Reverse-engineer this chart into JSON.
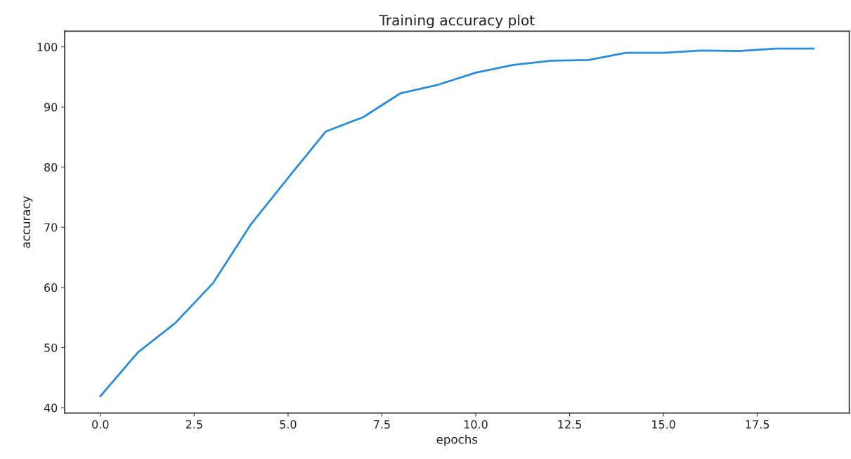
{
  "chart_data": {
    "type": "line",
    "title": "Training accuracy plot",
    "xlabel": "epochs",
    "ylabel": "accuracy",
    "x": [
      0,
      1,
      2,
      3,
      4,
      5,
      6,
      7,
      8,
      9,
      10,
      11,
      12,
      13,
      14,
      15,
      16,
      17,
      18,
      19
    ],
    "series": [
      {
        "color": "#2a8bd8",
        "values": [
          41.9,
          49.2,
          54.1,
          60.7,
          70.4,
          78.2,
          85.9,
          88.3,
          92.3,
          93.7,
          95.7,
          97.0,
          97.7,
          97.8,
          99.0,
          99.0,
          99.4,
          99.3,
          99.7,
          99.7
        ]
      }
    ],
    "xlim": [
      -0.95,
      19.95
    ],
    "ylim": [
      39.1,
      102.6
    ],
    "xticks": [
      {
        "value": 0,
        "label": "0.0"
      },
      {
        "value": 2.5,
        "label": "2.5"
      },
      {
        "value": 5,
        "label": "5.0"
      },
      {
        "value": 7.5,
        "label": "7.5"
      },
      {
        "value": 10,
        "label": "10.0"
      },
      {
        "value": 12.5,
        "label": "12.5"
      },
      {
        "value": 15,
        "label": "15.0"
      },
      {
        "value": 17.5,
        "label": "17.5"
      }
    ],
    "yticks": [
      40,
      50,
      60,
      70,
      80,
      90,
      100
    ],
    "grid": false
  }
}
